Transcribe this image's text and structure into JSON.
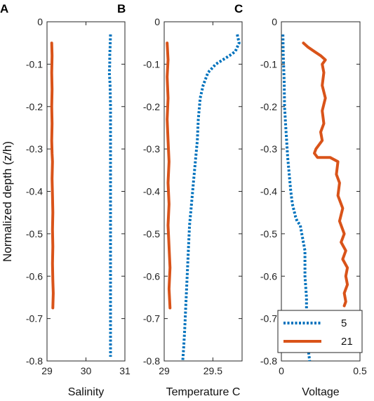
{
  "figure": {
    "ylabel": "Normalized depth (z/h)"
  },
  "chart_data": [
    {
      "type": "line",
      "panel_label": "A",
      "xlabel": "Salinity",
      "ylabel": "Normalized depth (z/h)",
      "xlim": [
        29,
        31
      ],
      "ylim": [
        -0.8,
        0
      ],
      "xticks": [
        29,
        30,
        31
      ],
      "yticks": [
        0,
        -0.1,
        -0.2,
        -0.3,
        -0.4,
        -0.5,
        -0.6,
        -0.7,
        -0.8
      ],
      "grid": false,
      "series": [
        {
          "color": "#0072BD",
          "style": "dotted",
          "x": [
            30.63,
            30.62,
            30.61,
            30.61,
            30.6,
            30.62,
            30.63,
            30.63,
            30.63,
            30.63,
            30.63,
            30.63,
            30.63
          ],
          "y": [
            -0.03,
            -0.06,
            -0.08,
            -0.1,
            -0.12,
            -0.15,
            -0.2,
            -0.3,
            -0.4,
            -0.5,
            -0.6,
            -0.7,
            -0.79
          ]
        },
        {
          "color": "#D95319",
          "style": "solid",
          "x": [
            29.12,
            29.13,
            29.12,
            29.13,
            29.12,
            29.13,
            29.12,
            29.13,
            29.14,
            29.13,
            29.14,
            29.15,
            29.14,
            29.15,
            29.14,
            29.15,
            29.16,
            29.15
          ],
          "y": [
            -0.05,
            -0.08,
            -0.12,
            -0.16,
            -0.2,
            -0.24,
            -0.28,
            -0.31,
            -0.33,
            -0.37,
            -0.41,
            -0.45,
            -0.49,
            -0.53,
            -0.57,
            -0.61,
            -0.64,
            -0.675
          ]
        }
      ]
    },
    {
      "type": "line",
      "panel_label": "B",
      "xlabel": "Temperature C",
      "ylabel": "",
      "xlim": [
        29,
        29.8
      ],
      "ylim": [
        -0.8,
        0
      ],
      "xticks": [
        29,
        29.5
      ],
      "yticks": [
        0,
        -0.1,
        -0.2,
        -0.3,
        -0.4,
        -0.5,
        -0.6,
        -0.7,
        -0.8
      ],
      "grid": false,
      "series": [
        {
          "color": "#0072BD",
          "style": "dotted",
          "x": [
            29.75,
            29.77,
            29.73,
            29.67,
            29.6,
            29.53,
            29.45,
            29.4,
            29.37,
            29.35,
            29.34,
            29.32,
            29.3,
            29.28,
            29.26,
            29.25,
            29.24,
            29.23,
            29.22,
            29.21,
            29.2,
            29.19
          ],
          "y": [
            -0.03,
            -0.05,
            -0.07,
            -0.08,
            -0.09,
            -0.1,
            -0.12,
            -0.15,
            -0.18,
            -0.23,
            -0.28,
            -0.33,
            -0.38,
            -0.43,
            -0.48,
            -0.53,
            -0.58,
            -0.63,
            -0.68,
            -0.73,
            -0.77,
            -0.8
          ]
        },
        {
          "color": "#D95319",
          "style": "solid",
          "x": [
            29.03,
            29.04,
            29.03,
            29.04,
            29.03,
            29.04,
            29.05,
            29.04,
            29.05,
            29.04,
            29.05,
            29.06,
            29.05,
            29.06
          ],
          "y": [
            -0.05,
            -0.09,
            -0.13,
            -0.18,
            -0.23,
            -0.28,
            -0.33,
            -0.38,
            -0.43,
            -0.48,
            -0.53,
            -0.58,
            -0.63,
            -0.675
          ]
        }
      ]
    },
    {
      "type": "line",
      "panel_label": "C",
      "xlabel": "Voltage",
      "ylabel": "",
      "xlim": [
        0,
        0.5
      ],
      "ylim": [
        -0.8,
        0
      ],
      "xticks": [
        0,
        0.5
      ],
      "yticks": [
        0,
        -0.1,
        -0.2,
        -0.3,
        -0.4,
        -0.5,
        -0.6,
        -0.7,
        -0.8
      ],
      "grid": false,
      "legend": {
        "location": "bottom-right",
        "entries": [
          "5",
          "21"
        ]
      },
      "series": [
        {
          "name": "5",
          "color": "#0072BD",
          "style": "dotted",
          "x": [
            0.01,
            0.012,
            0.018,
            0.02,
            0.03,
            0.04,
            0.05,
            0.06,
            0.07,
            0.09,
            0.1,
            0.12,
            0.13,
            0.15,
            0.15,
            0.16,
            0.16,
            0.17,
            0.17,
            0.18
          ],
          "y": [
            -0.03,
            -0.08,
            -0.14,
            -0.2,
            -0.26,
            -0.32,
            -0.36,
            -0.4,
            -0.43,
            -0.46,
            -0.47,
            -0.48,
            -0.5,
            -0.54,
            -0.6,
            -0.65,
            -0.7,
            -0.74,
            -0.77,
            -0.8
          ]
        },
        {
          "name": "21",
          "color": "#D95319",
          "style": "solid",
          "x": [
            0.14,
            0.17,
            0.21,
            0.25,
            0.28,
            0.26,
            0.27,
            0.26,
            0.28,
            0.26,
            0.27,
            0.25,
            0.26,
            0.22,
            0.21,
            0.23,
            0.31,
            0.36,
            0.35,
            0.37,
            0.36,
            0.39,
            0.37,
            0.4,
            0.38,
            0.41,
            0.39,
            0.42,
            0.41,
            0.42,
            0.4,
            0.41,
            0.4
          ],
          "y": [
            -0.05,
            -0.06,
            -0.07,
            -0.08,
            -0.09,
            -0.1,
            -0.12,
            -0.15,
            -0.18,
            -0.21,
            -0.24,
            -0.26,
            -0.28,
            -0.3,
            -0.31,
            -0.32,
            -0.32,
            -0.33,
            -0.36,
            -0.38,
            -0.41,
            -0.44,
            -0.47,
            -0.5,
            -0.52,
            -0.54,
            -0.56,
            -0.58,
            -0.6,
            -0.62,
            -0.64,
            -0.66,
            -0.67
          ]
        }
      ]
    }
  ]
}
